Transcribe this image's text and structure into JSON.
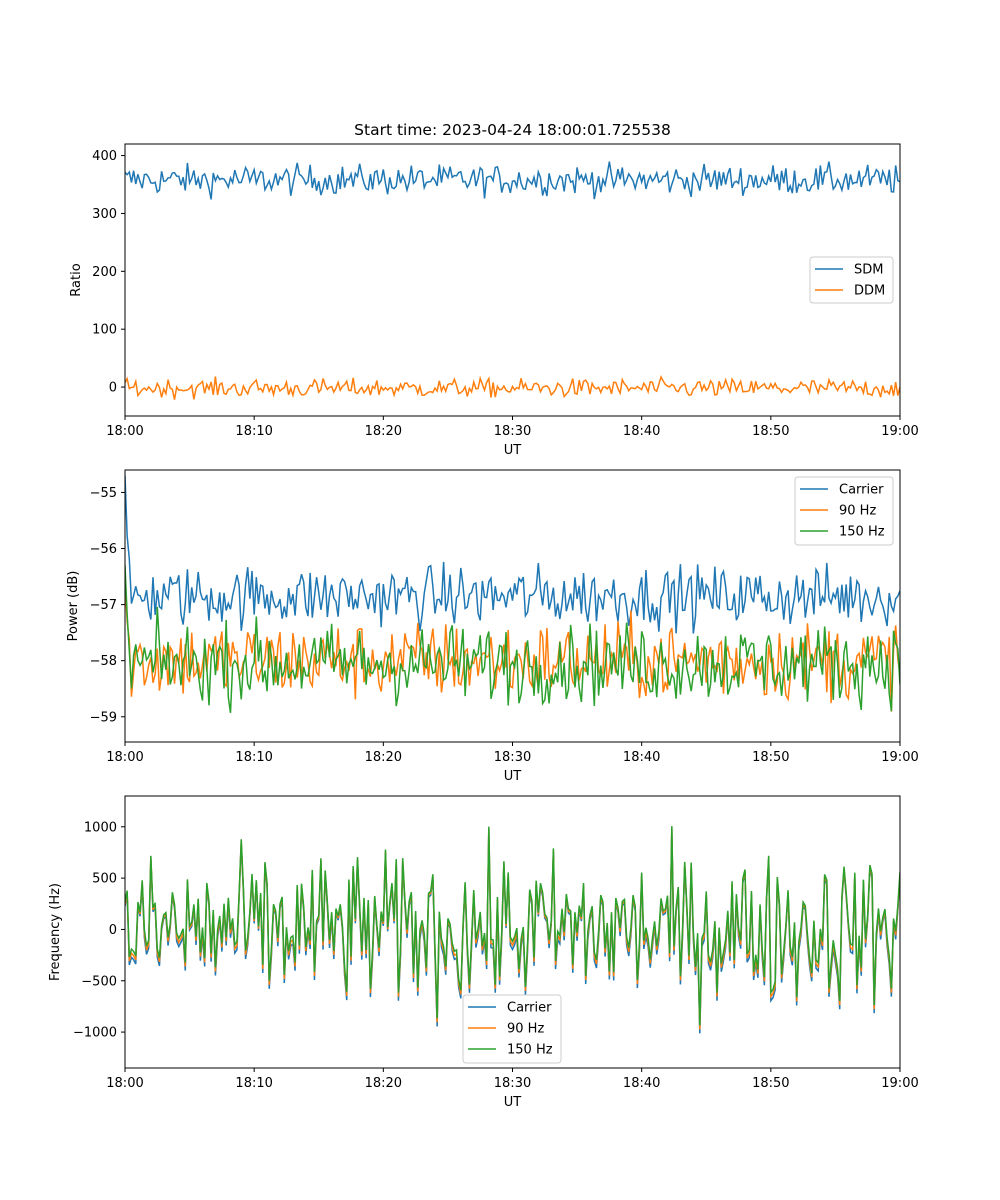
{
  "chart_data": [
    {
      "type": "line",
      "title": "Start time: 2023-04-24 18:00:01.725538",
      "xlabel": "UT",
      "ylabel": "Ratio",
      "xlim": [
        "18:00",
        "19:00"
      ],
      "xticks": [
        "18:00",
        "18:10",
        "18:20",
        "18:30",
        "18:40",
        "18:50",
        "19:00"
      ],
      "ylim": [
        -50,
        420
      ],
      "yticks": [
        0,
        100,
        200,
        300,
        400
      ],
      "legend_position": "center-right",
      "grid": false,
      "series": [
        {
          "name": "SDM",
          "color": "#1f77b4",
          "mean": 358,
          "noise": 13,
          "values": []
        },
        {
          "name": "DDM",
          "color": "#ff7f0e",
          "mean": -2,
          "noise": 8,
          "values": []
        }
      ]
    },
    {
      "type": "line",
      "title": "",
      "xlabel": "UT",
      "ylabel": "Power (dB)",
      "xlim": [
        "18:00",
        "19:00"
      ],
      "xticks": [
        "18:00",
        "18:10",
        "18:20",
        "18:30",
        "18:40",
        "18:50",
        "19:00"
      ],
      "ylim": [
        -59.45,
        -54.6
      ],
      "yticks": [
        -59,
        -58,
        -57,
        -56,
        -55
      ],
      "legend_position": "top-right",
      "grid": false,
      "series": [
        {
          "name": "Carrier",
          "color": "#1f77b4",
          "mean": -56.85,
          "noise": 0.27,
          "start_spike": -54.7,
          "values": []
        },
        {
          "name": "90 Hz",
          "color": "#ff7f0e",
          "mean": -58.0,
          "noise": 0.35,
          "start_spike": -56.6,
          "values": []
        },
        {
          "name": "150 Hz",
          "color": "#2ca02c",
          "mean": -58.05,
          "noise": 0.35,
          "start_spike": -56.3,
          "values": []
        }
      ]
    },
    {
      "type": "line",
      "title": "",
      "xlabel": "UT",
      "ylabel": "Frequency (Hz)",
      "xlim": [
        "18:00",
        "19:00"
      ],
      "xticks": [
        "18:00",
        "18:10",
        "18:20",
        "18:30",
        "18:40",
        "18:50",
        "19:00"
      ],
      "ylim": [
        -1350,
        1300
      ],
      "yticks": [
        -1000,
        -500,
        0,
        500,
        1000
      ],
      "legend_position": "bottom-center",
      "grid": false,
      "series": [
        {
          "name": "Carrier",
          "color": "#1f77b4",
          "mean": 0,
          "noise": 420,
          "offset": -30,
          "values": []
        },
        {
          "name": "90 Hz",
          "color": "#ff7f0e",
          "mean": 0,
          "noise": 420,
          "offset": -10,
          "values": []
        },
        {
          "name": "150 Hz",
          "color": "#2ca02c",
          "mean": 0,
          "noise": 420,
          "offset": 10,
          "values": []
        }
      ]
    }
  ]
}
